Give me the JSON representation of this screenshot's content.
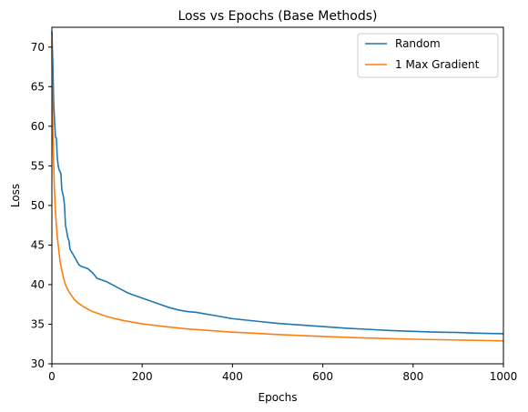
{
  "chart_data": {
    "type": "line",
    "title": "Loss vs Epochs (Base Methods)",
    "xlabel": "Epochs",
    "ylabel": "Loss",
    "xlim": [
      0,
      1000
    ],
    "ylim": [
      30,
      72.5
    ],
    "xticks": [
      0,
      200,
      400,
      600,
      800,
      1000
    ],
    "yticks": [
      30,
      35,
      40,
      45,
      50,
      55,
      60,
      65,
      70
    ],
    "grid": false,
    "legend_position": "top-right",
    "series": [
      {
        "name": "Random",
        "color": "#1f77b4",
        "x": [
          0,
          2,
          4,
          6,
          8,
          10,
          12,
          14,
          16,
          18,
          20,
          22,
          24,
          26,
          28,
          30,
          32,
          35,
          38,
          40,
          45,
          50,
          55,
          60,
          65,
          70,
          75,
          80,
          90,
          100,
          105,
          110,
          120,
          130,
          140,
          150,
          160,
          170,
          180,
          200,
          220,
          240,
          260,
          280,
          300,
          320,
          340,
          360,
          380,
          400,
          450,
          500,
          550,
          600,
          650,
          700,
          750,
          800,
          850,
          900,
          950,
          1000
        ],
        "y": [
          72.0,
          68.0,
          63.0,
          60.5,
          58.6,
          58.5,
          56.0,
          55.0,
          54.5,
          54.3,
          54.0,
          52.0,
          51.5,
          51.0,
          50.0,
          47.5,
          47.0,
          46.0,
          45.5,
          44.5,
          44.0,
          43.5,
          43.0,
          42.5,
          42.3,
          42.2,
          42.1,
          42.0,
          41.5,
          40.8,
          40.7,
          40.6,
          40.4,
          40.1,
          39.8,
          39.5,
          39.2,
          38.9,
          38.7,
          38.3,
          37.9,
          37.5,
          37.1,
          36.8,
          36.6,
          36.5,
          36.3,
          36.1,
          35.9,
          35.7,
          35.4,
          35.1,
          34.9,
          34.7,
          34.5,
          34.35,
          34.2,
          34.1,
          34.0,
          33.95,
          33.85,
          33.8
        ]
      },
      {
        "name": "1 Max Gradient",
        "color": "#ff7f0e",
        "x": [
          0,
          1,
          2,
          3,
          4,
          5,
          6,
          8,
          10,
          12,
          15,
          18,
          20,
          25,
          30,
          35,
          40,
          50,
          60,
          70,
          80,
          90,
          100,
          120,
          140,
          160,
          180,
          200,
          250,
          300,
          350,
          400,
          450,
          500,
          600,
          700,
          800,
          900,
          1000
        ],
        "y": [
          71.0,
          64.0,
          60.0,
          57.0,
          55.0,
          53.0,
          51.5,
          49.0,
          47.5,
          46.0,
          44.5,
          43.0,
          42.3,
          41.0,
          40.0,
          39.4,
          38.9,
          38.1,
          37.6,
          37.2,
          36.9,
          36.6,
          36.4,
          36.0,
          35.7,
          35.45,
          35.25,
          35.05,
          34.7,
          34.4,
          34.2,
          34.0,
          33.85,
          33.7,
          33.45,
          33.25,
          33.1,
          33.0,
          32.9
        ]
      }
    ]
  }
}
